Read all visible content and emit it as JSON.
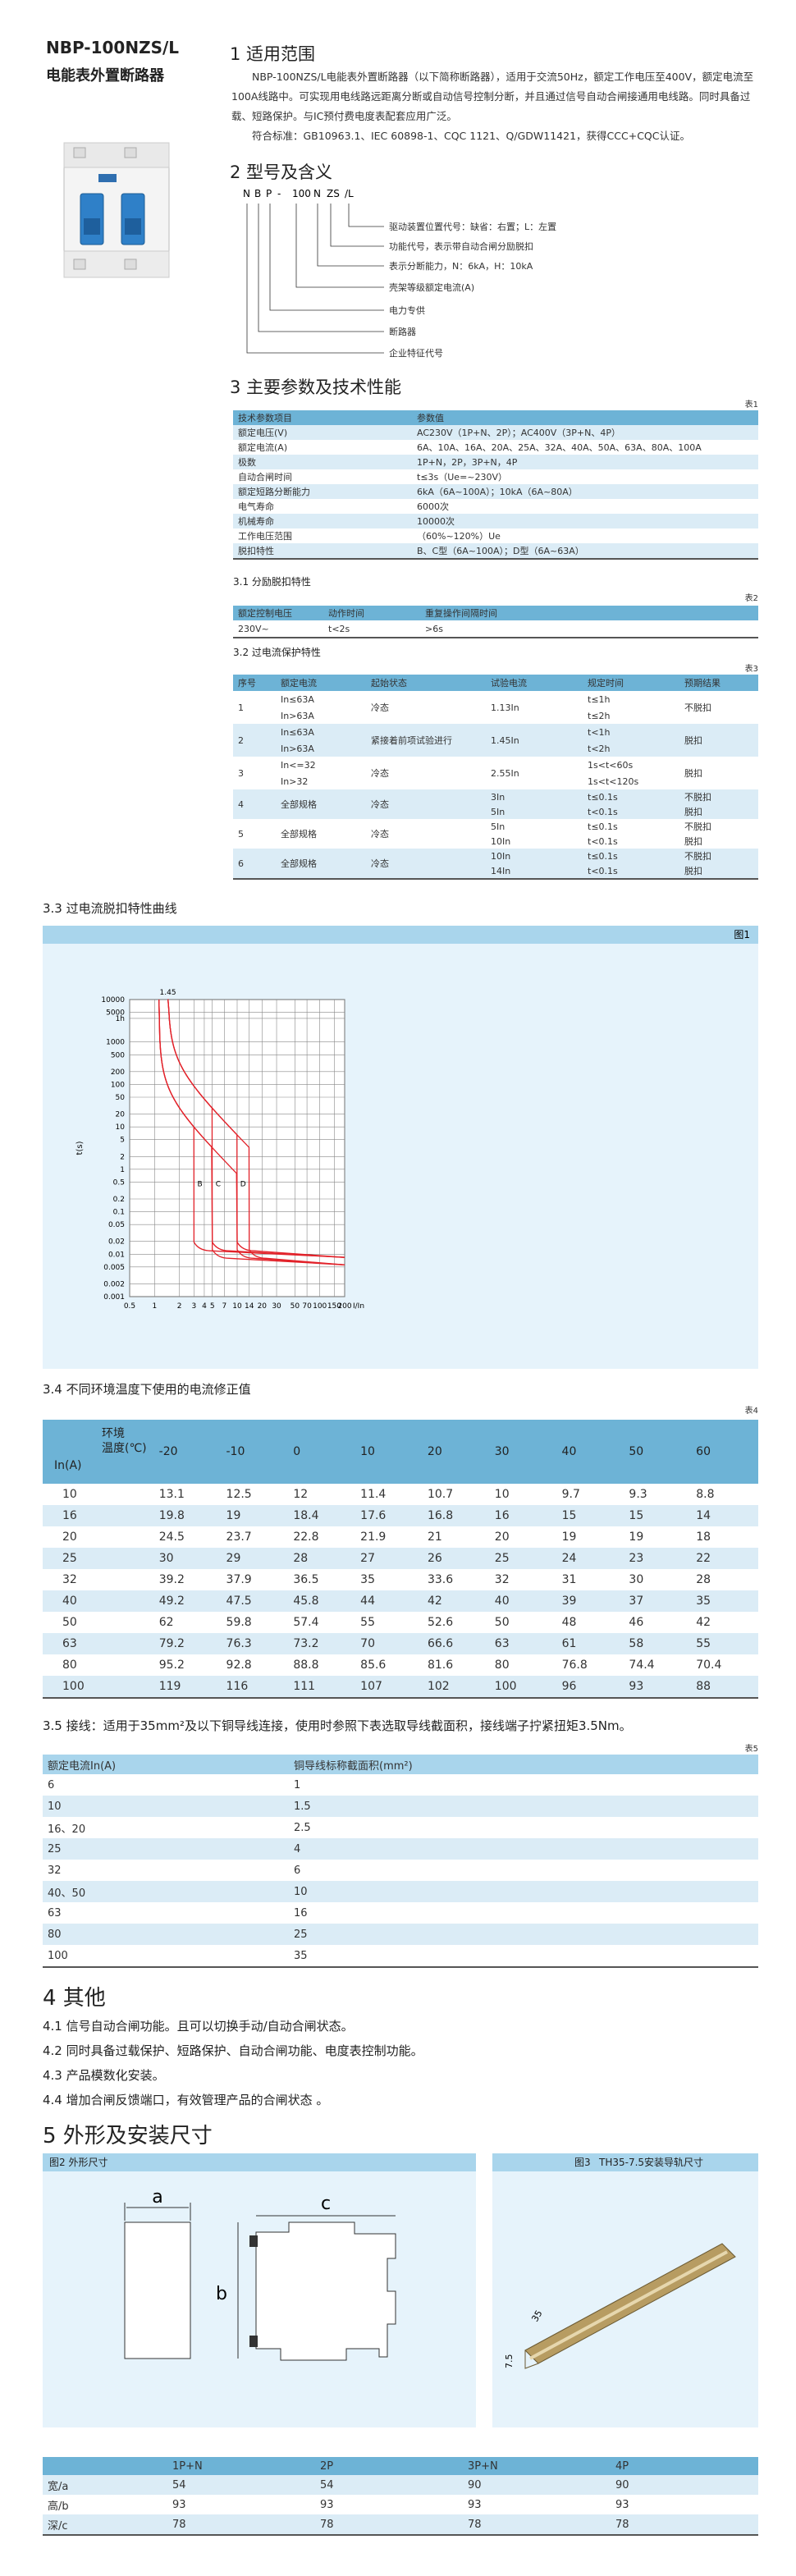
{
  "header": {
    "title": "NBP-100NZS/L",
    "subtitle": "电能表外置断路器"
  },
  "s1": {
    "heading": "1 适用范围",
    "paragraphs": [
      "NBP-100NZS/L电能表外置断路器（以下简称断路器），适用于交流50Hz，额定工作电压至400V，额定电流至100A线路中。可实现用电线路远距离分断或自动信号控制分断，并且通过信号自动合闸接通用电线路。同时具备过载、短路保护。与IC预付费电度表配套应用广泛。",
      "符合标准：GB10963.1、IEC 60898-1、CQC 1121、Q/GDW11421，获得CCC+CQC认证。"
    ]
  },
  "s2": {
    "heading": "2 型号及含义",
    "code": [
      "N",
      "B",
      "P",
      "-",
      "100",
      "N",
      "ZS",
      "/L"
    ],
    "labels": [
      "驱动装置位置代号：缺省：右置；L：左置",
      "功能代号，表示带自动合闸分励脱扣",
      "表示分断能力，N：6kA，H：10kA",
      "壳架等级额定电流(A)",
      "电力专供",
      "断路器",
      "企业特征代号"
    ]
  },
  "s3": {
    "heading": "3 主要参数及技术性能",
    "table1": {
      "label": "表1",
      "header": [
        "技术参数项目",
        "参数值"
      ],
      "rows": [
        [
          "额定电压(V)",
          "AC230V（1P+N、2P）；AC400V（3P+N、4P）"
        ],
        [
          "额定电流(A)",
          "6A、10A、16A、20A、25A、32A、40A、50A、63A、80A、100A"
        ],
        [
          "极数",
          "1P+N，2P，3P+N，4P"
        ],
        [
          "自动合闸时间",
          "t≤3s（Ue=~230V）"
        ],
        [
          "额定短路分断能力",
          "6kA（6A~100A）；10kA（6A~80A）"
        ],
        [
          "电气寿命",
          "6000次"
        ],
        [
          "机械寿命",
          "10000次"
        ],
        [
          "工作电压范围",
          "（60%~120%）Ue"
        ],
        [
          "脱扣特性",
          "B、C型（6A~100A）；D型（6A~63A）"
        ]
      ]
    },
    "s31": {
      "heading": "3.1 分励脱扣特性",
      "label": "表2",
      "header": [
        "额定控制电压",
        "动作时间",
        "重复操作间隔时间"
      ],
      "rows": [
        [
          "230V~",
          "t<2s",
          ">6s"
        ]
      ]
    },
    "s32": {
      "heading": "3.2 过电流保护特性",
      "label": "表3",
      "header": [
        "序号",
        "额定电流",
        "起始状态",
        "试验电流",
        "规定时间",
        "预期结果"
      ],
      "rows": [
        [
          "1",
          [
            "In≤63A",
            "In>63A"
          ],
          "冷态",
          "1.13In",
          [
            "t≤1h",
            "t≤2h"
          ],
          "不脱扣"
        ],
        [
          "2",
          [
            "In≤63A",
            "In>63A"
          ],
          "紧接着前项试验进行",
          "1.45In",
          [
            "t<1h",
            "t<2h"
          ],
          "脱扣"
        ],
        [
          "3",
          [
            "In<=32",
            "In>32"
          ],
          "冷态",
          "2.55In",
          [
            "1s<t<60s",
            "1s<t<120s"
          ],
          "脱扣"
        ],
        [
          "4",
          "全部规格",
          "冷态",
          [
            "3In",
            "5In"
          ],
          [
            "t≤0.1s",
            "t<0.1s"
          ],
          [
            "不脱扣",
            "脱扣"
          ]
        ],
        [
          "5",
          "全部规格",
          "冷态",
          [
            "5In",
            "10In"
          ],
          [
            "t≤0.1s",
            "t<0.1s"
          ],
          [
            "不脱扣",
            "脱扣"
          ]
        ],
        [
          "6",
          "全部规格",
          "冷态",
          [
            "10In",
            "14In"
          ],
          [
            "t≤0.1s",
            "t<0.1s"
          ],
          [
            "不脱扣",
            "脱扣"
          ]
        ]
      ]
    }
  },
  "s33": {
    "heading": "3.3 过电流脱扣特性曲线",
    "figure": "图1",
    "ylabel": "t(s)",
    "xlabel": "I/In",
    "marker": "1.45",
    "curves": [
      "B",
      "C",
      "D"
    ],
    "xticks": [
      0.5,
      1,
      2,
      3,
      4,
      5,
      7,
      10,
      14,
      20,
      30,
      50,
      70,
      100,
      150,
      200
    ],
    "yticks": [
      10000,
      5000,
      {
        "value": 3600,
        "label": "1h"
      },
      1000,
      500,
      200,
      100,
      50,
      20,
      10,
      5,
      2,
      1,
      0.5,
      0.2,
      0.1,
      0.05,
      0.02,
      0.01,
      0.005,
      0.002,
      0.001
    ]
  },
  "s34": {
    "heading": "3.4 不同环境温度下使用的电流修正值",
    "label": "表4",
    "corner_top": [
      "环境",
      "温度(℃)"
    ],
    "corner_bottom": "In(A)",
    "temps": [
      "-20",
      "-10",
      "0",
      "10",
      "20",
      "30",
      "40",
      "50",
      "60"
    ],
    "rows": [
      [
        "10",
        "13.1",
        "12.5",
        "12",
        "11.4",
        "10.7",
        "10",
        "9.7",
        "9.3",
        "8.8"
      ],
      [
        "16",
        "19.8",
        "19",
        "18.4",
        "17.6",
        "16.8",
        "16",
        "15",
        "15",
        "14"
      ],
      [
        "20",
        "24.5",
        "23.7",
        "22.8",
        "21.9",
        "21",
        "20",
        "19",
        "19",
        "18"
      ],
      [
        "25",
        "30",
        "29",
        "28",
        "27",
        "26",
        "25",
        "24",
        "23",
        "22"
      ],
      [
        "32",
        "39.2",
        "37.9",
        "36.5",
        "35",
        "33.6",
        "32",
        "31",
        "30",
        "28"
      ],
      [
        "40",
        "49.2",
        "47.5",
        "45.8",
        "44",
        "42",
        "40",
        "39",
        "37",
        "35"
      ],
      [
        "50",
        "62",
        "59.8",
        "57.4",
        "55",
        "52.6",
        "50",
        "48",
        "46",
        "42"
      ],
      [
        "63",
        "79.2",
        "76.3",
        "73.2",
        "70",
        "66.6",
        "63",
        "61",
        "58",
        "55"
      ],
      [
        "80",
        "95.2",
        "92.8",
        "88.8",
        "85.6",
        "81.6",
        "80",
        "76.8",
        "74.4",
        "70.4"
      ],
      [
        "100",
        "119",
        "116",
        "111",
        "107",
        "102",
        "100",
        "96",
        "93",
        "88"
      ]
    ]
  },
  "s35": {
    "text": "3.5 接线：适用于35mm²及以下铜导线连接，使用时参照下表选取导线截面积，接线端子拧紧扭矩3.5Nm。",
    "label": "表5",
    "header": [
      "额定电流In(A)",
      "铜导线标称截面积(mm²)"
    ],
    "rows": [
      [
        "6",
        "1"
      ],
      [
        "10",
        "1.5"
      ],
      [
        "16、20",
        "2.5"
      ],
      [
        "25",
        "4"
      ],
      [
        "32",
        "6"
      ],
      [
        "40、50",
        "10"
      ],
      [
        "63",
        "16"
      ],
      [
        "80",
        "25"
      ],
      [
        "100",
        "35"
      ]
    ]
  },
  "s4": {
    "heading": "4 其他",
    "items": [
      "4.1 信号自动合闸功能。且可以切换手动/自动合闸状态。",
      "4.2 同时具备过载保护、短路保护、自动合闸功能、电度表控制功能。",
      "4.3 产品模数化安装。",
      "4.4 增加合闸反馈端口，有效管理产品的合闸状态 。"
    ]
  },
  "s5": {
    "heading": "5 外形及安装尺寸",
    "fig2": "图2 外形尺寸",
    "fig3_no": "图3",
    "fig3": "TH35-7.5安装导轨尺寸",
    "dims": [
      "a",
      "b",
      "c"
    ],
    "rail": [
      "35",
      "7.5"
    ],
    "table": {
      "header": [
        "1P+N",
        "2P",
        "3P+N",
        "4P"
      ],
      "rows": [
        [
          "宽/a",
          "54",
          "54",
          "90",
          "90"
        ],
        [
          "高/b",
          "93",
          "93",
          "93",
          "93"
        ],
        [
          "深/c",
          "78",
          "78",
          "78",
          "78"
        ]
      ]
    }
  }
}
